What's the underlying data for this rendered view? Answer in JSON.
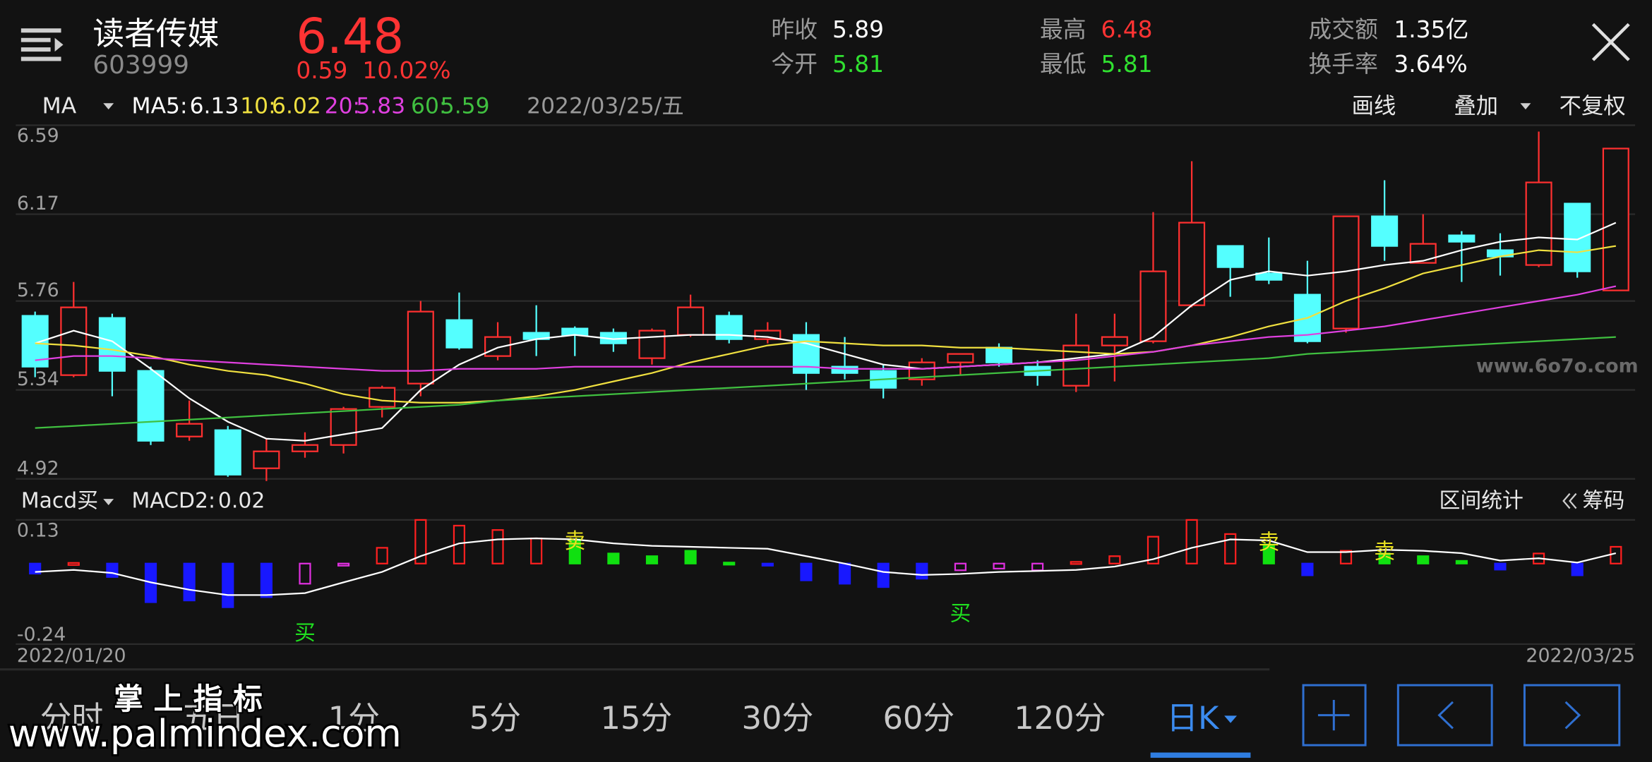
{
  "header": {
    "name": "读者传媒",
    "code": "603999",
    "price": "6.48",
    "change": "0.59",
    "change_pct": "10.02%"
  },
  "stats": [
    {
      "label": "昨收",
      "value": "5.89",
      "color": "#ffffff"
    },
    {
      "label": "今开",
      "value": "5.81",
      "color": "#30e030"
    },
    {
      "label": "最高",
      "value": "6.48",
      "color": "#ff3333"
    },
    {
      "label": "最低",
      "value": "5.81",
      "color": "#30e030"
    },
    {
      "label": "成交额",
      "value": "1.35亿",
      "color": "#ffffff"
    },
    {
      "label": "换手率",
      "value": "3.64%",
      "color": "#ffffff"
    }
  ],
  "toolbar": {
    "indicator": "MA",
    "date": "2022/03/25/五",
    "actions": [
      "画线",
      "叠加",
      "不复权"
    ]
  },
  "watermarks": [
    "www.6o7o.com",
    "掌 上 指 标",
    "www.palmindex.com"
  ],
  "tabs": [
    "分时",
    "五日",
    "1分",
    "5分",
    "15分",
    "30分",
    "60分",
    "120分",
    "日K"
  ],
  "chart_data": [
    {
      "type": "candlestick",
      "categories": [
        "2022/01/20",
        null,
        null,
        null,
        null,
        null,
        null,
        null,
        null,
        null,
        null,
        null,
        null,
        null,
        null,
        null,
        null,
        null,
        null,
        null,
        null,
        null,
        null,
        null,
        null,
        null,
        null,
        null,
        null,
        null,
        null,
        null,
        null,
        null,
        null,
        null,
        null,
        null,
        null,
        null,
        null,
        "2022/03/25"
      ],
      "open": [
        5.69,
        5.41,
        5.68,
        5.43,
        5.12,
        5.15,
        4.97,
        5.05,
        5.08,
        5.26,
        5.37,
        5.67,
        5.5,
        5.61,
        5.63,
        5.61,
        5.49,
        5.6,
        5.69,
        5.58,
        5.6,
        5.45,
        5.43,
        5.39,
        5.47,
        5.54,
        5.45,
        5.36,
        5.55,
        5.57,
        5.74,
        6.02,
        5.89,
        5.79,
        5.63,
        6.16,
        5.94,
        6.07,
        6.0,
        5.93,
        6.22,
        5.81
      ],
      "high": [
        5.71,
        5.85,
        5.7,
        5.45,
        5.29,
        5.17,
        5.11,
        5.14,
        5.26,
        5.36,
        5.76,
        5.8,
        5.66,
        5.74,
        5.64,
        5.63,
        5.63,
        5.79,
        5.71,
        5.66,
        5.66,
        5.59,
        5.46,
        5.49,
        5.51,
        5.56,
        5.48,
        5.7,
        5.7,
        6.18,
        6.42,
        6.02,
        6.06,
        5.95,
        6.16,
        6.33,
        6.17,
        6.09,
        6.08,
        6.56,
        6.22,
        6.48
      ],
      "low": [
        5.4,
        5.4,
        5.31,
        5.08,
        5.1,
        4.93,
        4.91,
        5.02,
        5.04,
        5.21,
        5.31,
        5.53,
        5.48,
        5.5,
        5.5,
        5.52,
        5.46,
        5.59,
        5.56,
        5.56,
        5.34,
        5.39,
        5.3,
        5.36,
        5.41,
        5.45,
        5.36,
        5.33,
        5.38,
        5.56,
        5.73,
        5.78,
        5.84,
        5.56,
        5.61,
        5.95,
        5.94,
        5.85,
        5.88,
        5.92,
        5.87,
        5.81
      ],
      "close": [
        5.45,
        5.73,
        5.43,
        5.1,
        5.18,
        4.94,
        5.05,
        5.08,
        5.25,
        5.35,
        5.71,
        5.54,
        5.59,
        5.58,
        5.6,
        5.56,
        5.62,
        5.73,
        5.58,
        5.62,
        5.42,
        5.42,
        5.35,
        5.47,
        5.51,
        5.47,
        5.41,
        5.55,
        5.59,
        5.9,
        6.13,
        5.92,
        5.86,
        5.57,
        6.16,
        6.02,
        6.03,
        6.04,
        5.97,
        6.32,
        5.9,
        6.48
      ],
      "up_color": "#ff3030",
      "down_color": "#54ffff",
      "ylim": [
        4.92,
        6.59
      ],
      "yticks": [
        6.59,
        6.17,
        5.76,
        5.34,
        4.92
      ],
      "grid": true,
      "series": [
        {
          "name": "MA5:",
          "color": "#ffffff",
          "values": [
            5.56,
            5.62,
            5.57,
            5.44,
            5.3,
            5.19,
            5.11,
            5.1,
            5.13,
            5.16,
            5.34,
            5.46,
            5.54,
            5.58,
            5.6,
            5.58,
            5.59,
            5.6,
            5.6,
            5.59,
            5.56,
            5.51,
            5.46,
            5.44,
            5.45,
            5.46,
            5.47,
            5.49,
            5.51,
            5.59,
            5.74,
            5.86,
            5.9,
            5.88,
            5.9,
            5.93,
            5.95,
            6.0,
            6.04,
            6.06,
            6.05,
            6.13
          ]
        },
        {
          "name": "10:",
          "color": "#f0e040",
          "values": [
            5.56,
            5.55,
            5.53,
            5.5,
            5.46,
            5.43,
            5.41,
            5.37,
            5.32,
            5.29,
            5.28,
            5.28,
            5.29,
            5.31,
            5.34,
            5.38,
            5.42,
            5.47,
            5.51,
            5.55,
            5.57,
            5.56,
            5.55,
            5.55,
            5.54,
            5.54,
            5.53,
            5.52,
            5.51,
            5.52,
            5.55,
            5.59,
            5.64,
            5.68,
            5.76,
            5.82,
            5.89,
            5.93,
            5.97,
            6.0,
            5.99,
            6.02
          ]
        },
        {
          "name": "20:",
          "color": "#e040e0",
          "values": [
            5.48,
            5.5,
            5.5,
            5.49,
            5.48,
            5.47,
            5.46,
            5.45,
            5.44,
            5.43,
            5.43,
            5.44,
            5.44,
            5.44,
            5.45,
            5.45,
            5.45,
            5.45,
            5.45,
            5.45,
            5.45,
            5.44,
            5.44,
            5.44,
            5.45,
            5.46,
            5.47,
            5.48,
            5.5,
            5.52,
            5.55,
            5.57,
            5.59,
            5.6,
            5.62,
            5.64,
            5.67,
            5.7,
            5.73,
            5.76,
            5.79,
            5.83
          ]
        },
        {
          "name": "60:",
          "color": "#40c040",
          "values": [
            5.16,
            5.17,
            5.18,
            5.19,
            5.2,
            5.21,
            5.22,
            5.23,
            5.24,
            5.25,
            5.26,
            5.27,
            5.29,
            5.3,
            5.31,
            5.32,
            5.33,
            5.34,
            5.35,
            5.36,
            5.37,
            5.38,
            5.39,
            5.4,
            5.41,
            5.42,
            5.43,
            5.44,
            5.45,
            5.46,
            5.47,
            5.48,
            5.49,
            5.51,
            5.52,
            5.53,
            5.54,
            5.55,
            5.56,
            5.57,
            5.58,
            5.59
          ]
        }
      ]
    },
    {
      "type": "bar",
      "title": "Macd买",
      "readout_label": "MACD2:",
      "readout_value": 0.02,
      "tools": [
        "区间统计",
        "筹码"
      ],
      "values": [
        -0.03,
        0.002,
        -0.04,
        -0.115,
        -0.11,
        -0.13,
        -0.1,
        -0.06,
        -0.003,
        0.047,
        0.13,
        0.113,
        0.1,
        0.075,
        0.072,
        0.03,
        0.022,
        0.038,
        0.003,
        -0.005,
        -0.05,
        -0.06,
        -0.07,
        -0.045,
        -0.02,
        -0.015,
        -0.02,
        0.005,
        0.022,
        0.08,
        0.13,
        0.088,
        0.057,
        -0.035,
        0.038,
        0.03,
        0.022,
        0.008,
        -0.018,
        0.03,
        -0.035,
        0.05
      ],
      "colors": [
        "#1818ff",
        "#ff2020",
        "#1818ff",
        "#1818ff",
        "#1818ff",
        "#1818ff",
        "#1818ff",
        "#e030e0",
        "#e030e0",
        "#ff2020",
        "#ff2020",
        "#ff2020",
        "#ff2020",
        "#ff2020",
        "#10e010",
        "#10e010",
        "#10e010",
        "#10e010",
        "#10e010",
        "#1818ff",
        "#1818ff",
        "#1818ff",
        "#1818ff",
        "#1818ff",
        "#e030e0",
        "#e030e0",
        "#e030e0",
        "#ff2020",
        "#ff2020",
        "#ff2020",
        "#ff2020",
        "#ff2020",
        "#10e010",
        "#1818ff",
        "#ff2020",
        "#10e010",
        "#10e010",
        "#10e010",
        "#1818ff",
        "#ff2020",
        "#1818ff",
        "#ff2020"
      ],
      "hollow_colors": [
        "#ff2020",
        "#e030e0"
      ],
      "line_values": [
        -0.025,
        -0.019,
        -0.028,
        -0.056,
        -0.078,
        -0.094,
        -0.094,
        -0.088,
        -0.056,
        -0.025,
        0.022,
        0.06,
        0.072,
        0.075,
        0.072,
        0.06,
        0.053,
        0.05,
        0.047,
        0.044,
        0.022,
        0,
        -0.025,
        -0.034,
        -0.031,
        -0.025,
        -0.022,
        -0.019,
        -0.009,
        0.013,
        0.047,
        0.072,
        0.069,
        0.034,
        0.034,
        0.041,
        0.038,
        0.031,
        0.009,
        0.016,
        0.003,
        0.031
      ],
      "line_color": "#ffffff",
      "signals": [
        null,
        null,
        null,
        null,
        null,
        null,
        null,
        {
          "label": "买",
          "color": "#20e020"
        },
        null,
        null,
        null,
        null,
        null,
        null,
        {
          "label": "卖",
          "color": "#e8e020"
        },
        null,
        null,
        null,
        null,
        null,
        null,
        null,
        null,
        null,
        {
          "label": "买",
          "color": "#20e020"
        },
        null,
        null,
        null,
        null,
        null,
        null,
        null,
        {
          "label": "卖",
          "color": "#e8e020"
        },
        null,
        null,
        {
          "label": "卖",
          "color": "#e8e020"
        },
        null,
        null,
        null,
        null,
        null,
        null
      ],
      "ylim": [
        -0.24,
        0.13
      ],
      "yticks": [
        0.13,
        -0.24
      ]
    }
  ]
}
